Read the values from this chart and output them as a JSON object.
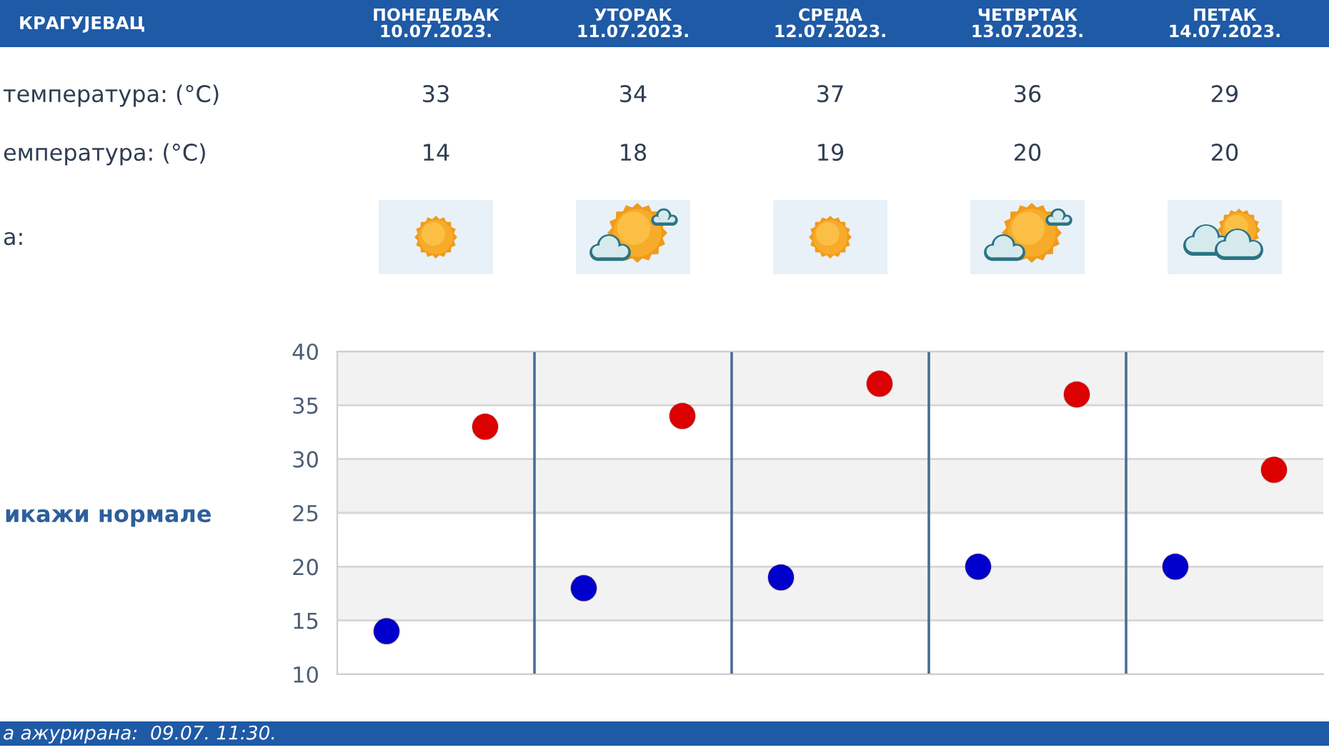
{
  "chart_data": {
    "type": "scatter",
    "title": "КРАГУЈЕВАЦ",
    "categories": [
      null,
      null,
      null,
      null,
      null
    ],
    "series": [
      {
        "color": "#dd0000",
        "values": [
          33,
          34,
          37,
          36,
          29
        ]
      },
      {
        "color": "#0000cc",
        "values": [
          14,
          18,
          19,
          20,
          20
        ]
      }
    ],
    "ylim": [
      10,
      40
    ],
    "yticks": [
      10,
      15,
      20,
      25,
      30,
      35,
      40
    ],
    "grid": true,
    "data_labels": true,
    "marker": "circle",
    "annotations": [
      "ПОНЕДЕЉАК\n10.07.2023.",
      "УТОРАК\n11.07.2023.",
      "СРЕДА\n12.07.2023.",
      "ЧЕТВРТАК\n13.07.2023.",
      "ПЕТАК\n14.07.2023.",
      "температура: (°C)",
      "емпература: (°C)",
      "а:",
      "икажи нормале",
      "а ажурирана:  09.07. 11:30."
    ]
  }
}
